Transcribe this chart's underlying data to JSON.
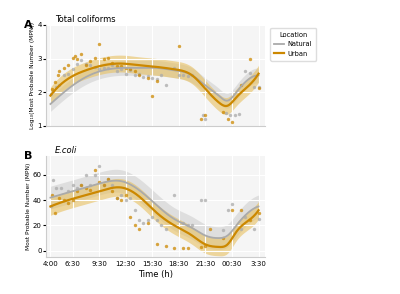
{
  "title_a": "Total coliforms",
  "title_b": "E.coli",
  "panel_a_label": "A",
  "panel_b_label": "B",
  "xlabel": "Time (h)",
  "ylabel_a": "Log₁₀(Most Probable Number (MPN))",
  "ylabel_b": "Most Probable Number (MPN)",
  "x_ticks": [
    "4:00",
    "6:30",
    "9:30",
    "12:30",
    "15:30",
    "18:30",
    "21:30",
    "00:30",
    "3:30"
  ],
  "x_tick_vals": [
    0,
    2.5,
    5.5,
    8.5,
    11.5,
    14.5,
    17.5,
    20.5,
    23.5
  ],
  "color_natural": "#aaaaaa",
  "color_urban": "#CC8800",
  "color_natural_fill": "#cccccc",
  "color_urban_fill": "#e8c060",
  "background": "#f5f5f5",
  "ylim_a": [
    1.0,
    4.0
  ],
  "yticks_a": [
    1,
    2,
    3,
    4
  ],
  "ylim_b": [
    -5,
    75
  ],
  "yticks_b": [
    0,
    20,
    40,
    60
  ],
  "nat_curve_a_knots": [
    0,
    2,
    4,
    6,
    8,
    10,
    12,
    14,
    16,
    17.5,
    19,
    20,
    21,
    22,
    23.5
  ],
  "nat_curve_a_vals": [
    1.65,
    2.1,
    2.45,
    2.65,
    2.72,
    2.72,
    2.72,
    2.65,
    2.5,
    2.2,
    1.9,
    1.75,
    2.0,
    2.3,
    2.5
  ],
  "urb_curve_a_knots": [
    0,
    2,
    4,
    6,
    8,
    10,
    12,
    14,
    16,
    17.5,
    19,
    20,
    21,
    22,
    23.5
  ],
  "urb_curve_a_vals": [
    1.9,
    2.4,
    2.65,
    2.8,
    2.85,
    2.8,
    2.75,
    2.68,
    2.5,
    2.1,
    1.7,
    1.6,
    1.85,
    2.1,
    2.55
  ],
  "nat_band_a": 0.22,
  "urb_band_a": 0.25,
  "nat_curve_b_knots": [
    0,
    2,
    4,
    6,
    8,
    10,
    12,
    14,
    16,
    17.5,
    19,
    20,
    21,
    22,
    23.5
  ],
  "nat_curve_b_vals": [
    42,
    46,
    50,
    54,
    55,
    48,
    36,
    25,
    18,
    12,
    10,
    12,
    20,
    28,
    35
  ],
  "urb_curve_b_knots": [
    0,
    2,
    4,
    6,
    8,
    10,
    12,
    14,
    16,
    17.5,
    19,
    20,
    21,
    22,
    23.5
  ],
  "urb_curve_b_vals": [
    35,
    40,
    44,
    48,
    50,
    43,
    30,
    20,
    12,
    5,
    3,
    5,
    15,
    22,
    32
  ],
  "nat_band_b": 9,
  "urb_band_b": 7,
  "nat_scatter_a_x": [
    0.1,
    0.3,
    0.6,
    1.0,
    1.5,
    2.0,
    2.5,
    3.0,
    3.5,
    4.0,
    4.5,
    5.0,
    5.5,
    6.0,
    6.5,
    7.0,
    7.5,
    8.0,
    8.5,
    9.0,
    9.5,
    10.0,
    10.5,
    11.0,
    11.5,
    12.0,
    12.5,
    13.0,
    14.0,
    14.5,
    15.0,
    15.5,
    16.0,
    17.2,
    17.5,
    19.8,
    20.3,
    20.8,
    21.3,
    22.0,
    22.5,
    23.0,
    23.5
  ],
  "nat_scatter_a_y": [
    1.95,
    2.05,
    2.15,
    2.2,
    2.5,
    2.55,
    2.7,
    2.85,
    2.95,
    2.85,
    2.8,
    2.75,
    2.68,
    2.72,
    2.72,
    2.8,
    2.62,
    2.7,
    2.55,
    2.65,
    2.52,
    2.55,
    2.45,
    2.48,
    2.42,
    2.38,
    2.52,
    2.22,
    2.72,
    2.52,
    2.52,
    2.48,
    2.52,
    1.32,
    1.22,
    1.38,
    1.32,
    1.32,
    1.35,
    2.62,
    2.58,
    2.15,
    2.15
  ],
  "urb_scatter_a_x": [
    0.2,
    0.5,
    0.8,
    1.0,
    1.5,
    2.0,
    2.5,
    2.8,
    3.0,
    3.5,
    4.0,
    4.5,
    5.0,
    5.5,
    6.0,
    6.5,
    7.0,
    7.5,
    8.0,
    8.5,
    9.0,
    9.5,
    10.0,
    11.0,
    11.5,
    12.0,
    14.5,
    17.0,
    17.5,
    19.5,
    20.0,
    20.5,
    21.5,
    22.5,
    23.5
  ],
  "urb_scatter_a_y": [
    2.1,
    2.3,
    2.5,
    2.62,
    2.72,
    2.82,
    3.02,
    3.08,
    2.98,
    3.12,
    2.82,
    2.92,
    3.02,
    3.42,
    2.98,
    3.02,
    2.88,
    2.78,
    2.78,
    2.72,
    2.68,
    2.62,
    2.52,
    2.42,
    1.88,
    2.32,
    3.38,
    1.22,
    1.32,
    1.42,
    1.22,
    1.12,
    2.22,
    2.98,
    2.12
  ],
  "nat_scatter_b_x": [
    0.1,
    0.3,
    0.6,
    1.2,
    2.0,
    2.5,
    3.0,
    3.5,
    4.0,
    4.5,
    5.0,
    5.5,
    6.0,
    6.5,
    7.0,
    7.5,
    8.0,
    8.5,
    9.0,
    9.5,
    10.0,
    10.5,
    11.0,
    11.5,
    12.0,
    12.5,
    13.0,
    14.0,
    15.0,
    15.5,
    16.0,
    17.0,
    17.5,
    19.5,
    20.0,
    20.5,
    21.5,
    22.0,
    23.0,
    23.5
  ],
  "nat_scatter_b_y": [
    35,
    56,
    50,
    50,
    47,
    52,
    50,
    52,
    60,
    52,
    60,
    67,
    52,
    57,
    52,
    42,
    44,
    40,
    42,
    32,
    24,
    22,
    24,
    27,
    24,
    20,
    17,
    44,
    22,
    20,
    20,
    40,
    40,
    16,
    32,
    37,
    17,
    27,
    17,
    25
  ],
  "urb_scatter_b_x": [
    0.2,
    0.5,
    1.0,
    1.5,
    2.0,
    2.5,
    3.0,
    3.5,
    4.0,
    4.5,
    5.0,
    5.5,
    6.0,
    6.5,
    7.0,
    7.5,
    8.0,
    8.5,
    9.0,
    9.5,
    10.0,
    11.0,
    12.0,
    13.0,
    14.0,
    15.0,
    15.5,
    17.0,
    17.5,
    18.0,
    19.5,
    20.5,
    21.5,
    22.5,
    23.5
  ],
  "urb_scatter_b_y": [
    44,
    30,
    42,
    40,
    38,
    40,
    47,
    52,
    50,
    48,
    64,
    54,
    52,
    57,
    47,
    42,
    40,
    44,
    27,
    20,
    17,
    22,
    5,
    4,
    2,
    2,
    2,
    3,
    4,
    17,
    10,
    32,
    32,
    24,
    30
  ]
}
